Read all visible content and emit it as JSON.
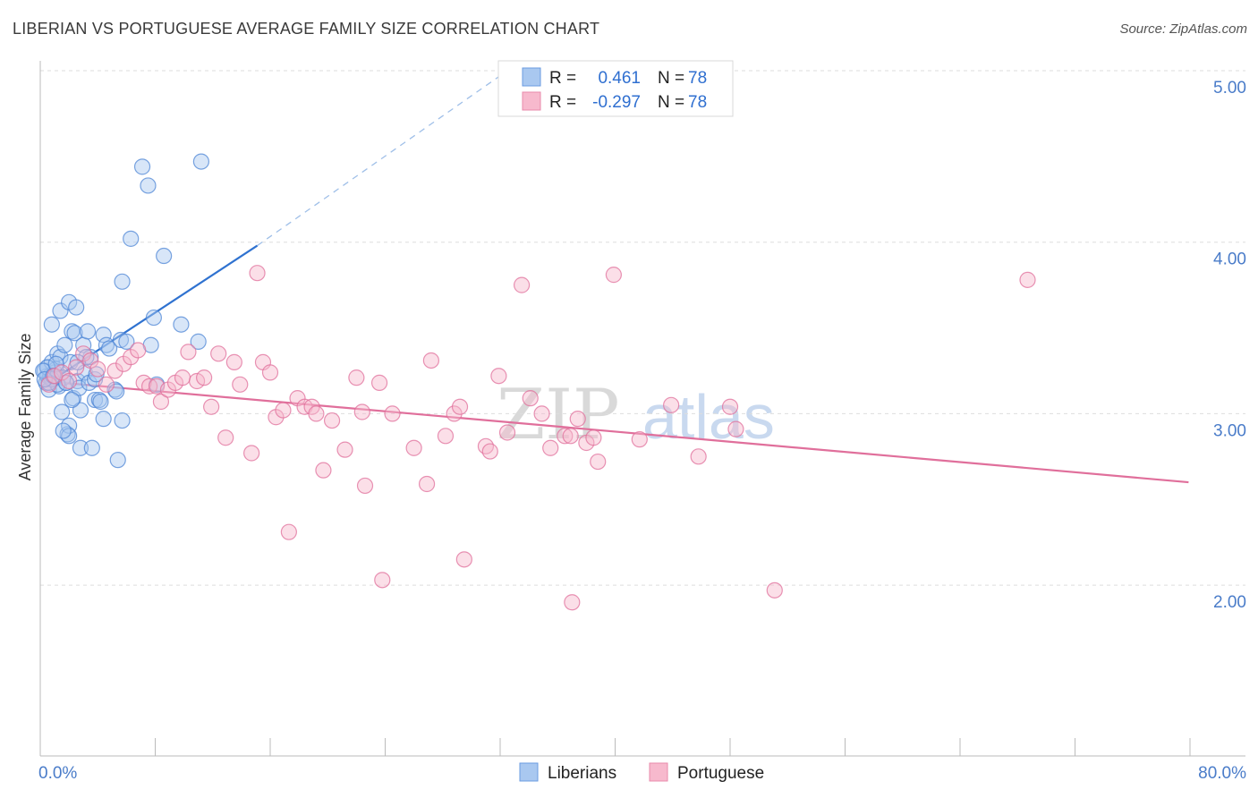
{
  "header": {
    "title": "LIBERIAN VS PORTUGUESE AVERAGE FAMILY SIZE CORRELATION CHART",
    "source": "Source: ZipAtlas.com"
  },
  "watermark": {
    "zip": "ZIP",
    "atlas": "atlas"
  },
  "stats": {
    "r_label": "R =",
    "n_label": "N =",
    "rows": [
      {
        "r": "0.461",
        "n": "78",
        "color": "#a9c8f0"
      },
      {
        "r": "-0.297",
        "n": "78",
        "color": "#f7b9cd"
      }
    ]
  },
  "chart_data": {
    "type": "scatter",
    "title": "LIBERIAN VS PORTUGUESE AVERAGE FAMILY SIZE CORRELATION CHART",
    "xlabel": "",
    "ylabel": "Average Family Size",
    "xlim": [
      0,
      80
    ],
    "ylim": [
      1.0,
      5.1
    ],
    "x_tick_labels": [
      "0.0%",
      "80.0%"
    ],
    "y_ticks": [
      2.0,
      3.0,
      4.0,
      5.0
    ],
    "y_tick_labels": [
      "2.00",
      "3.00",
      "4.00",
      "5.00"
    ],
    "grid": true,
    "legend_position": "bottom-center",
    "series": [
      {
        "name": "Liberians",
        "color": "#4d86d6",
        "fill": "#a9c8f0",
        "trend": {
          "x0": 0.2,
          "y0": 3.16,
          "x1": 15.1,
          "y1": 3.98,
          "dash_x1": 32.5,
          "dash_y1": 5.0
        },
        "points": [
          [
            0.3,
            3.25
          ],
          [
            0.4,
            3.18
          ],
          [
            0.5,
            3.22
          ],
          [
            0.5,
            3.27
          ],
          [
            0.6,
            3.14
          ],
          [
            0.7,
            3.22
          ],
          [
            0.8,
            3.3
          ],
          [
            0.8,
            3.52
          ],
          [
            0.9,
            3.2
          ],
          [
            1.0,
            3.24
          ],
          [
            1.1,
            3.26
          ],
          [
            1.2,
            3.35
          ],
          [
            1.3,
            3.16
          ],
          [
            1.4,
            3.33
          ],
          [
            1.4,
            3.6
          ],
          [
            1.5,
            3.01
          ],
          [
            1.6,
            3.21
          ],
          [
            1.7,
            3.4
          ],
          [
            1.8,
            3.18
          ],
          [
            1.9,
            2.88
          ],
          [
            2.0,
            3.65
          ],
          [
            2.0,
            2.93
          ],
          [
            2.1,
            3.3
          ],
          [
            2.2,
            3.48
          ],
          [
            2.3,
            3.09
          ],
          [
            2.4,
            3.47
          ],
          [
            2.5,
            3.62
          ],
          [
            2.6,
            3.19
          ],
          [
            2.7,
            3.15
          ],
          [
            2.8,
            3.02
          ],
          [
            2.8,
            2.8
          ],
          [
            3.0,
            3.4
          ],
          [
            3.1,
            3.24
          ],
          [
            3.3,
            3.48
          ],
          [
            3.4,
            3.18
          ],
          [
            3.5,
            3.33
          ],
          [
            3.6,
            2.8
          ],
          [
            3.8,
            3.2
          ],
          [
            3.8,
            3.08
          ],
          [
            3.9,
            3.23
          ],
          [
            4.1,
            3.08
          ],
          [
            4.4,
            2.97
          ],
          [
            4.4,
            3.46
          ],
          [
            4.6,
            3.4
          ],
          [
            4.8,
            3.38
          ],
          [
            5.2,
            3.14
          ],
          [
            5.4,
            2.73
          ],
          [
            5.6,
            3.43
          ],
          [
            5.7,
            3.77
          ],
          [
            5.7,
            2.96
          ],
          [
            6.3,
            4.02
          ],
          [
            7.1,
            4.44
          ],
          [
            7.5,
            4.33
          ],
          [
            7.7,
            3.4
          ],
          [
            7.9,
            3.56
          ],
          [
            8.1,
            3.17
          ],
          [
            8.6,
            3.92
          ],
          [
            9.8,
            3.52
          ],
          [
            11.0,
            3.42
          ],
          [
            11.2,
            4.47
          ],
          [
            0.5,
            3.27
          ],
          [
            1.0,
            3.21
          ],
          [
            1.2,
            3.17
          ],
          [
            2.0,
            2.87
          ],
          [
            0.8,
            3.2
          ],
          [
            3.2,
            3.33
          ],
          [
            1.6,
            2.9
          ],
          [
            0.6,
            3.18
          ],
          [
            0.2,
            3.25
          ],
          [
            0.3,
            3.2
          ],
          [
            2.2,
            3.08
          ],
          [
            1.1,
            3.29
          ],
          [
            5.3,
            3.13
          ],
          [
            4.2,
            3.07
          ],
          [
            6.0,
            3.42
          ],
          [
            0.9,
            3.22
          ],
          [
            1.8,
            3.18
          ],
          [
            2.6,
            3.3
          ]
        ]
      },
      {
        "name": "Portuguese",
        "color": "#e06f9b",
        "fill": "#f7b9cd",
        "trend": {
          "x0": 0.2,
          "y0": 3.19,
          "x1": 79.9,
          "y1": 2.6
        },
        "points": [
          [
            0.6,
            3.17
          ],
          [
            1.0,
            3.22
          ],
          [
            1.5,
            3.24
          ],
          [
            2.0,
            3.19
          ],
          [
            2.5,
            3.27
          ],
          [
            3.0,
            3.35
          ],
          [
            3.5,
            3.31
          ],
          [
            4.0,
            3.26
          ],
          [
            4.6,
            3.17
          ],
          [
            5.2,
            3.25
          ],
          [
            5.8,
            3.29
          ],
          [
            6.3,
            3.33
          ],
          [
            6.8,
            3.37
          ],
          [
            7.2,
            3.18
          ],
          [
            7.6,
            3.16
          ],
          [
            8.1,
            3.16
          ],
          [
            8.4,
            3.07
          ],
          [
            8.9,
            3.14
          ],
          [
            9.4,
            3.18
          ],
          [
            9.9,
            3.21
          ],
          [
            10.3,
            3.36
          ],
          [
            10.9,
            3.19
          ],
          [
            11.4,
            3.21
          ],
          [
            11.9,
            3.04
          ],
          [
            12.4,
            3.35
          ],
          [
            12.9,
            2.86
          ],
          [
            13.5,
            3.3
          ],
          [
            13.9,
            3.17
          ],
          [
            14.7,
            2.77
          ],
          [
            15.1,
            3.82
          ],
          [
            15.5,
            3.3
          ],
          [
            16.0,
            3.24
          ],
          [
            16.4,
            2.98
          ],
          [
            16.9,
            3.02
          ],
          [
            17.3,
            2.31
          ],
          [
            17.9,
            3.09
          ],
          [
            18.4,
            3.04
          ],
          [
            18.9,
            3.04
          ],
          [
            19.2,
            3.0
          ],
          [
            19.7,
            2.67
          ],
          [
            20.3,
            2.96
          ],
          [
            21.2,
            2.79
          ],
          [
            22.0,
            3.21
          ],
          [
            22.4,
            3.01
          ],
          [
            22.6,
            2.58
          ],
          [
            23.6,
            3.18
          ],
          [
            23.8,
            2.03
          ],
          [
            24.5,
            3.0
          ],
          [
            26.0,
            2.8
          ],
          [
            26.9,
            2.59
          ],
          [
            27.2,
            3.31
          ],
          [
            28.2,
            2.87
          ],
          [
            28.8,
            3.0
          ],
          [
            29.2,
            3.04
          ],
          [
            29.5,
            2.15
          ],
          [
            31.0,
            2.81
          ],
          [
            31.3,
            2.78
          ],
          [
            31.9,
            3.22
          ],
          [
            32.5,
            2.89
          ],
          [
            33.5,
            3.75
          ],
          [
            34.1,
            3.09
          ],
          [
            34.9,
            3.0
          ],
          [
            35.5,
            2.8
          ],
          [
            36.5,
            2.87
          ],
          [
            37.0,
            1.9
          ],
          [
            37.4,
            2.97
          ],
          [
            38.0,
            2.83
          ],
          [
            38.5,
            2.86
          ],
          [
            38.8,
            2.72
          ],
          [
            39.9,
            3.81
          ],
          [
            41.7,
            2.85
          ],
          [
            43.9,
            3.05
          ],
          [
            45.8,
            2.75
          ],
          [
            48.0,
            3.04
          ],
          [
            48.4,
            2.91
          ],
          [
            51.1,
            1.97
          ],
          [
            68.7,
            3.78
          ],
          [
            36.9,
            2.87
          ]
        ]
      }
    ]
  }
}
